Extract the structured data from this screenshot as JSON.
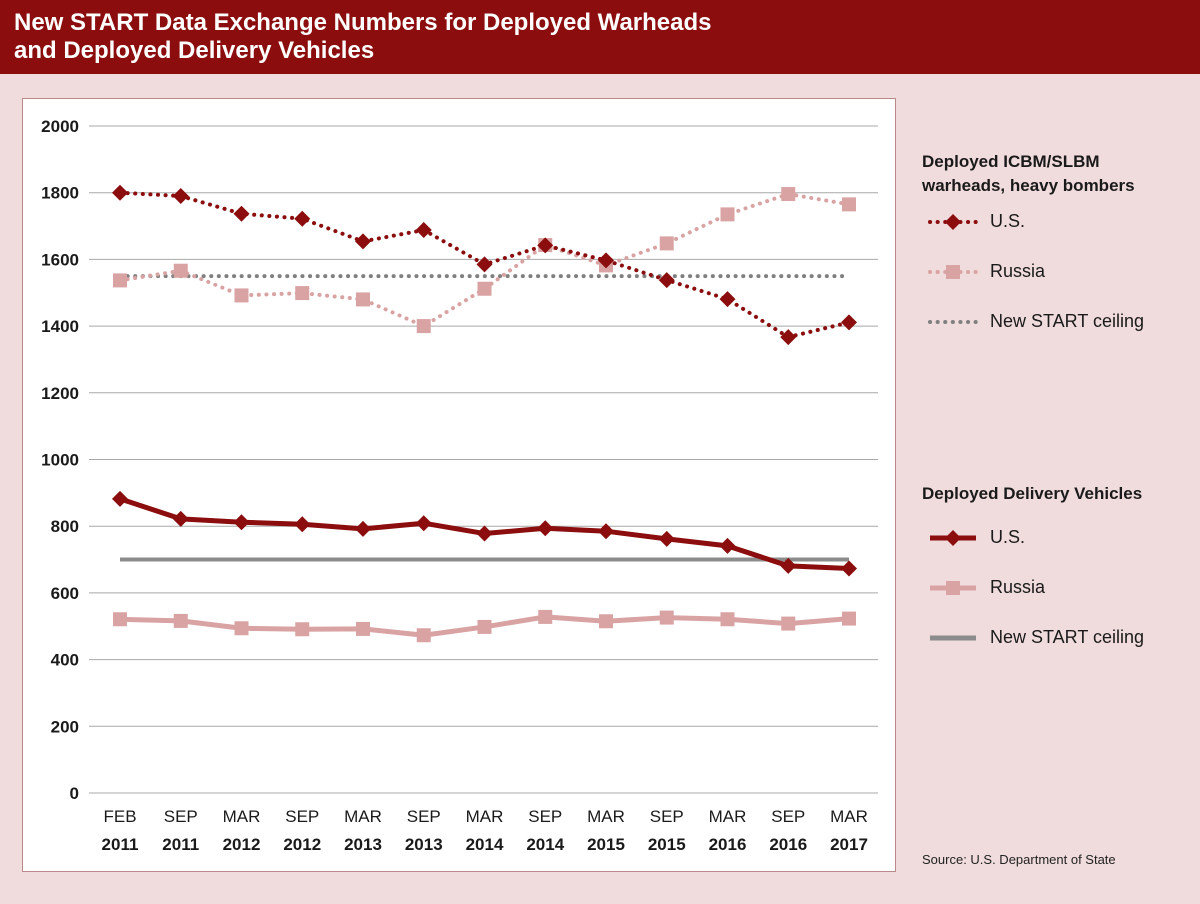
{
  "title": {
    "line1": "New START Data Exchange Numbers for Deployed Warheads",
    "line2": "and Deployed Delivery Vehicles"
  },
  "legend": {
    "warheads_heading_line1": "Deployed ICBM/SLBM",
    "warheads_heading_line2": "warheads, heavy bombers",
    "vehicles_heading": "Deployed Delivery Vehicles",
    "us_label": "U.S.",
    "russia_label": "Russia",
    "ceiling_label": "New START ceiling"
  },
  "source": "Source: U.S. Department of State",
  "colors": {
    "us": "#8b0d0d",
    "russia": "#d9a3a3",
    "ceiling_warheads": "#808080",
    "ceiling_vehicles": "#8c8c8c",
    "header": "#8b0d0d",
    "background": "#f0dcdc"
  },
  "chart_data": {
    "type": "line",
    "x_months": [
      "FEB",
      "SEP",
      "MAR",
      "SEP",
      "MAR",
      "SEP",
      "MAR",
      "SEP",
      "MAR",
      "SEP",
      "MAR",
      "SEP",
      "MAR"
    ],
    "x_years": [
      "2011",
      "2011",
      "2012",
      "2012",
      "2013",
      "2013",
      "2014",
      "2014",
      "2015",
      "2015",
      "2016",
      "2016",
      "2017"
    ],
    "ylim": [
      0,
      2000
    ],
    "yticks": [
      0,
      200,
      400,
      600,
      800,
      1000,
      1200,
      1400,
      1600,
      1800,
      2000
    ],
    "grid": true,
    "series": [
      {
        "name": "U.S.",
        "group": "Deployed ICBM/SLBM warheads, heavy bombers",
        "style": "dotted",
        "marker": "diamond",
        "values": [
          1800,
          1790,
          1737,
          1722,
          1654,
          1688,
          1585,
          1642,
          1597,
          1538,
          1481,
          1367,
          1411
        ]
      },
      {
        "name": "Russia",
        "group": "Deployed ICBM/SLBM warheads, heavy bombers",
        "style": "dotted",
        "marker": "square",
        "values": [
          1537,
          1566,
          1492,
          1499,
          1480,
          1400,
          1512,
          1643,
          1582,
          1648,
          1735,
          1796,
          1765
        ]
      },
      {
        "name": "New START ceiling",
        "group": "Deployed ICBM/SLBM warheads, heavy bombers",
        "style": "dotted",
        "marker": "none",
        "values": [
          1550,
          1550,
          1550,
          1550,
          1550,
          1550,
          1550,
          1550,
          1550,
          1550,
          1550,
          1550,
          1550
        ]
      },
      {
        "name": "U.S.",
        "group": "Deployed Delivery Vehicles",
        "style": "solid",
        "marker": "diamond",
        "values": [
          882,
          822,
          812,
          806,
          792,
          809,
          778,
          794,
          785,
          762,
          741,
          681,
          673
        ]
      },
      {
        "name": "Russia",
        "group": "Deployed Delivery Vehicles",
        "style": "solid",
        "marker": "square",
        "values": [
          521,
          516,
          494,
          491,
          492,
          473,
          498,
          528,
          515,
          526,
          521,
          508,
          523
        ]
      },
      {
        "name": "New START ceiling",
        "group": "Deployed Delivery Vehicles",
        "style": "solid",
        "marker": "none",
        "values": [
          700,
          700,
          700,
          700,
          700,
          700,
          700,
          700,
          700,
          700,
          700,
          700,
          700
        ]
      }
    ]
  }
}
